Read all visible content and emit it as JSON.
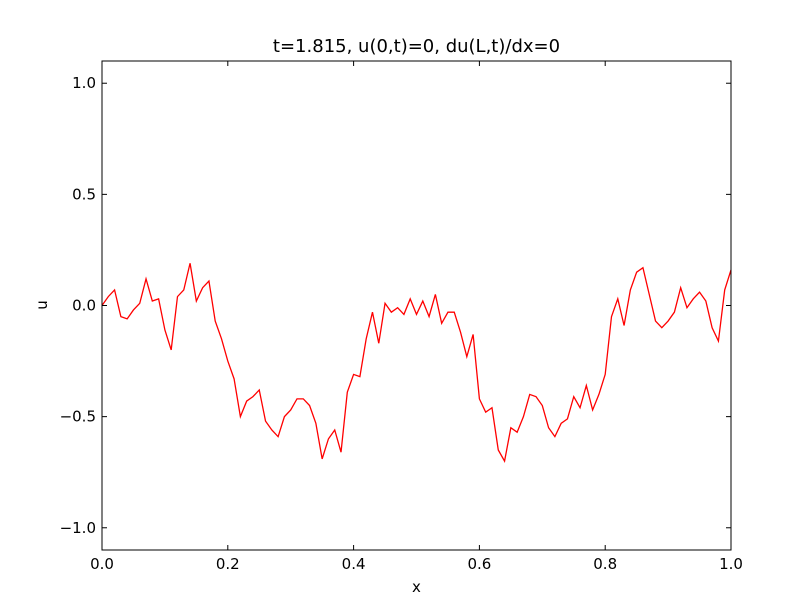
{
  "chart_data": {
    "type": "line",
    "title": "t=1.815, u(0,t)=0, du(L,t)/dx=0",
    "xlabel": "x",
    "ylabel": "u",
    "xlim": [
      0.0,
      1.0
    ],
    "ylim": [
      -1.1,
      1.1
    ],
    "xticks": [
      0.0,
      0.2,
      0.4,
      0.6,
      0.8,
      1.0
    ],
    "xtick_labels": [
      "0.0",
      "0.2",
      "0.4",
      "0.6",
      "0.8",
      "1.0"
    ],
    "yticks": [
      -1.0,
      -0.5,
      0.0,
      0.5,
      1.0
    ],
    "ytick_labels": [
      "−1.0",
      "−0.5",
      "0.0",
      "0.5",
      "1.0"
    ],
    "grid": false,
    "colors": {
      "line": "#ff0000",
      "axes": "#000000",
      "background": "#ffffff"
    },
    "series": [
      {
        "x": [
          0.0,
          0.01,
          0.02,
          0.03,
          0.04,
          0.05,
          0.06,
          0.07,
          0.08,
          0.09,
          0.1,
          0.11,
          0.12,
          0.13,
          0.14,
          0.15,
          0.16,
          0.17,
          0.18,
          0.19,
          0.2,
          0.21,
          0.22,
          0.23,
          0.24,
          0.25,
          0.26,
          0.27,
          0.28,
          0.29,
          0.3,
          0.31,
          0.32,
          0.33,
          0.34,
          0.35,
          0.36,
          0.37,
          0.38,
          0.39,
          0.4,
          0.41,
          0.42,
          0.43,
          0.44,
          0.45,
          0.46,
          0.47,
          0.48,
          0.49,
          0.5,
          0.51,
          0.52,
          0.53,
          0.54,
          0.55,
          0.56,
          0.57,
          0.58,
          0.59,
          0.6,
          0.61,
          0.62,
          0.63,
          0.64,
          0.65,
          0.66,
          0.67,
          0.68,
          0.69,
          0.7,
          0.71,
          0.72,
          0.73,
          0.74,
          0.75,
          0.76,
          0.77,
          0.78,
          0.79,
          0.8,
          0.81,
          0.82,
          0.83,
          0.84,
          0.85,
          0.86,
          0.87,
          0.88,
          0.89,
          0.9,
          0.91,
          0.92,
          0.93,
          0.94,
          0.95,
          0.96,
          0.97,
          0.98,
          0.99,
          1.0
        ],
        "y": [
          0.0,
          0.04,
          0.07,
          -0.05,
          -0.06,
          -0.02,
          0.01,
          0.12,
          0.02,
          0.03,
          -0.11,
          -0.2,
          0.04,
          0.07,
          0.19,
          0.02,
          0.08,
          0.11,
          -0.07,
          -0.15,
          -0.25,
          -0.33,
          -0.5,
          -0.43,
          -0.41,
          -0.38,
          -0.52,
          -0.56,
          -0.59,
          -0.5,
          -0.47,
          -0.42,
          -0.42,
          -0.45,
          -0.53,
          -0.69,
          -0.6,
          -0.56,
          -0.66,
          -0.39,
          -0.31,
          -0.32,
          -0.15,
          -0.03,
          -0.17,
          0.01,
          -0.03,
          -0.01,
          -0.04,
          0.03,
          -0.04,
          0.02,
          -0.05,
          0.05,
          -0.08,
          -0.03,
          -0.03,
          -0.12,
          -0.23,
          -0.13,
          -0.42,
          -0.48,
          -0.46,
          -0.65,
          -0.7,
          -0.55,
          -0.57,
          -0.5,
          -0.4,
          -0.41,
          -0.45,
          -0.55,
          -0.59,
          -0.53,
          -0.51,
          -0.41,
          -0.46,
          -0.36,
          -0.47,
          -0.4,
          -0.31,
          -0.05,
          0.03,
          -0.09,
          0.07,
          0.15,
          0.17,
          0.05,
          -0.07,
          -0.1,
          -0.07,
          -0.03,
          0.08,
          -0.01,
          0.03,
          0.06,
          0.02,
          -0.1,
          -0.16,
          0.07,
          0.16
        ]
      }
    ]
  }
}
